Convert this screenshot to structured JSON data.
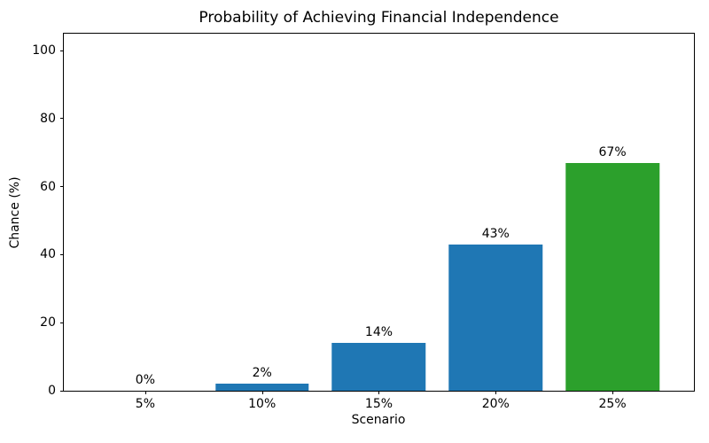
{
  "figure": {
    "background_color": "#ffffff",
    "text_color": "#000000",
    "spine_color": "#000000"
  },
  "chart_data": {
    "type": "bar",
    "title": "Probability of Achieving Financial Independence",
    "xlabel": "Scenario",
    "ylabel": "Chance (%)",
    "categories": [
      "5%",
      "10%",
      "15%",
      "20%",
      "25%"
    ],
    "values": [
      0,
      2,
      14,
      43,
      67
    ],
    "bar_labels": [
      "0%",
      "2%",
      "14%",
      "43%",
      "67%"
    ],
    "bar_colors": [
      "#1f77b4",
      "#1f77b4",
      "#1f77b4",
      "#1f77b4",
      "#2ca02c"
    ],
    "ylim": [
      0,
      105
    ],
    "yticks": [
      0,
      20,
      40,
      60,
      80,
      100
    ],
    "grid": false,
    "legend_position": "none",
    "bar_width_fraction": 0.8
  }
}
